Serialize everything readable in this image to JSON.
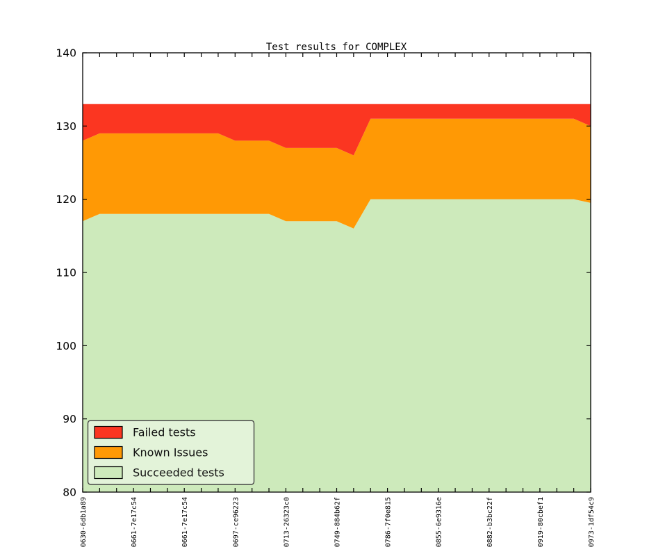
{
  "chart_data": {
    "type": "area",
    "stacked": true,
    "title": "Test results for COMPLEX",
    "ylim": [
      80,
      140
    ],
    "y_ticks": [
      80,
      90,
      100,
      110,
      120,
      130,
      140
    ],
    "x_tick_labels": [
      "0630-6db1a89",
      "0661-7e17c54",
      "0661-7e17c54",
      "0697-ce96223",
      "0713-26323c0",
      "0749-884b62f",
      "0786-7f0e815",
      "0855-6e9316e",
      "-0882-b3bc22f",
      "-0919-80cbef1",
      "-0973-1df54c9"
    ],
    "x_labeled_every_n_points": 3,
    "n_points": 31,
    "grid": false,
    "total_per_point": 133,
    "series": [
      {
        "name": "Succeeded tests",
        "color": "#cdeabb",
        "values": [
          117,
          118,
          118,
          118,
          118,
          118,
          118,
          118,
          118,
          118,
          118,
          118,
          117,
          117,
          117,
          117,
          116,
          120,
          120,
          120,
          120,
          120,
          120,
          120,
          120,
          120,
          120,
          120,
          120,
          120,
          119.5
        ]
      },
      {
        "name": "Known Issues",
        "color": "#ff9905",
        "values": [
          11,
          11,
          11,
          11,
          11,
          11,
          11,
          11,
          11,
          10,
          10,
          10,
          10,
          10,
          10,
          10,
          10,
          11,
          11,
          11,
          11,
          11,
          11,
          11,
          11,
          11,
          11,
          11,
          11,
          11,
          10.5
        ]
      },
      {
        "name": "Failed tests",
        "color": "#fb3621",
        "values": [
          5,
          4,
          4,
          4,
          4,
          4,
          4,
          4,
          4,
          5,
          5,
          5,
          6,
          6,
          6,
          6,
          7,
          2,
          2,
          2,
          2,
          2,
          2,
          2,
          2,
          2,
          2,
          2,
          2,
          2,
          3
        ]
      }
    ],
    "legend": {
      "position": "lower left",
      "background": "#e3f3d9",
      "border_color": "#444444",
      "entries": [
        {
          "label": "Failed tests",
          "color": "#fb3621"
        },
        {
          "label": "Known Issues",
          "color": "#ff9905"
        },
        {
          "label": "Succeeded tests",
          "color": "#cdeabb"
        }
      ]
    },
    "axis_color": "#000000"
  }
}
